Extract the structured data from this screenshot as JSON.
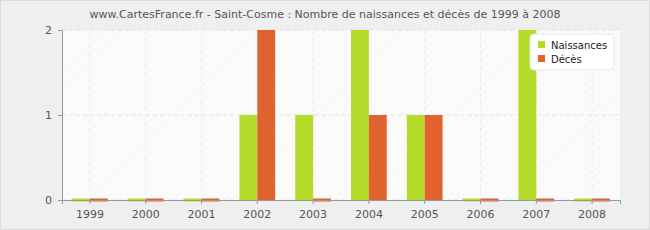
{
  "chart_data": {
    "type": "bar",
    "title": "www.CartesFrance.fr - Saint-Cosme : Nombre de naissances et décès de 1999 à 2008",
    "categories": [
      "1999",
      "2000",
      "2001",
      "2002",
      "2003",
      "2004",
      "2005",
      "2006",
      "2007",
      "2008"
    ],
    "series": [
      {
        "name": "Naissances",
        "color": "#b5dc2a",
        "values": [
          0,
          0,
          0,
          1,
          1,
          2,
          1,
          0,
          2,
          0
        ]
      },
      {
        "name": "Décès",
        "color": "#e0622f",
        "values": [
          0,
          0,
          0,
          2,
          0,
          1,
          1,
          0,
          0,
          0
        ]
      }
    ],
    "ylim": [
      0,
      2
    ],
    "yticks": [
      0,
      1,
      2
    ],
    "grid": true,
    "legend": "top-right"
  }
}
